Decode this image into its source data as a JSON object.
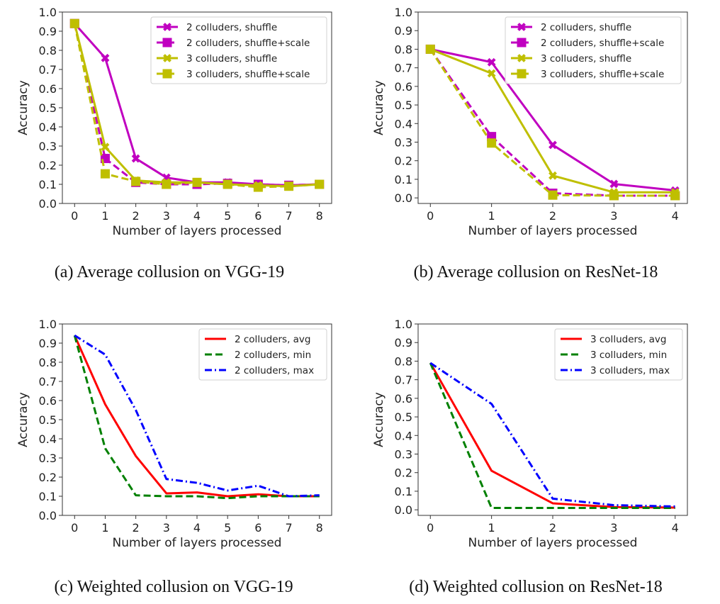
{
  "chart_data": [
    {
      "id": "a",
      "type": "line",
      "caption": "(a) Average collusion on VGG-19",
      "xlabel": "Number of layers processed",
      "ylabel": "Accuracy",
      "x": [
        0,
        1,
        2,
        3,
        4,
        5,
        6,
        7,
        8
      ],
      "xticks": [
        "0",
        "1",
        "2",
        "3",
        "4",
        "5",
        "6",
        "7",
        "8"
      ],
      "yticks": [
        "0.0",
        "0.1",
        "0.2",
        "0.3",
        "0.4",
        "0.5",
        "0.6",
        "0.7",
        "0.8",
        "0.9",
        "1.0"
      ],
      "xlim": [
        -0.4,
        8.4
      ],
      "ylim": [
        0.0,
        1.0
      ],
      "grid": false,
      "legend_position": "top-right",
      "series": [
        {
          "name": "2 colluders, shuffle",
          "color": "#c000c0",
          "style": "solid",
          "marker": "x-filled",
          "values": [
            0.94,
            0.76,
            0.235,
            0.135,
            0.11,
            0.11,
            0.1,
            0.095,
            0.1
          ]
        },
        {
          "name": "2 colluders, shuffle+scale",
          "color": "#c000c0",
          "style": "dashed",
          "marker": "square",
          "values": [
            0.94,
            0.235,
            0.11,
            0.1,
            0.1,
            0.105,
            0.1,
            0.095,
            0.1
          ]
        },
        {
          "name": "3 colluders, shuffle",
          "color": "#bfbf00",
          "style": "solid",
          "marker": "x-filled",
          "values": [
            0.94,
            0.295,
            0.12,
            0.11,
            0.11,
            0.1,
            0.095,
            0.09,
            0.1
          ]
        },
        {
          "name": "3 colluders, shuffle+scale",
          "color": "#bfbf00",
          "style": "dashed",
          "marker": "square",
          "values": [
            0.94,
            0.155,
            0.115,
            0.1,
            0.11,
            0.1,
            0.085,
            0.09,
            0.1
          ]
        }
      ]
    },
    {
      "id": "b",
      "type": "line",
      "caption": "(b) Average collusion on ResNet-18",
      "xlabel": "Number of layers processed",
      "ylabel": "Accuracy",
      "x": [
        0,
        1,
        2,
        3,
        4
      ],
      "xticks": [
        "0",
        "1",
        "2",
        "3",
        "4"
      ],
      "yticks": [
        "0.0",
        "0.1",
        "0.2",
        "0.3",
        "0.4",
        "0.5",
        "0.6",
        "0.7",
        "0.8",
        "0.9",
        "1.0"
      ],
      "xlim": [
        -0.2,
        4.2
      ],
      "ylim": [
        -0.03,
        1.0
      ],
      "grid": false,
      "legend_position": "top-right",
      "series": [
        {
          "name": "2 colluders, shuffle",
          "color": "#c000c0",
          "style": "solid",
          "marker": "x-filled",
          "values": [
            0.8,
            0.73,
            0.285,
            0.075,
            0.04
          ]
        },
        {
          "name": "2 colluders, shuffle+scale",
          "color": "#c000c0",
          "style": "dashed",
          "marker": "square",
          "values": [
            0.8,
            0.33,
            0.025,
            0.012,
            0.012
          ]
        },
        {
          "name": "3 colluders, shuffle",
          "color": "#bfbf00",
          "style": "solid",
          "marker": "x-filled",
          "values": [
            0.8,
            0.67,
            0.12,
            0.03,
            0.03
          ]
        },
        {
          "name": "3 colluders, shuffle+scale",
          "color": "#bfbf00",
          "style": "dashed",
          "marker": "square",
          "values": [
            0.8,
            0.295,
            0.015,
            0.012,
            0.012
          ]
        }
      ]
    },
    {
      "id": "c",
      "type": "line",
      "caption": "(c) Weighted collusion on VGG-19",
      "xlabel": "Number of layers processed",
      "ylabel": "Accuracy",
      "x": [
        0,
        1,
        2,
        3,
        4,
        5,
        6,
        7,
        8
      ],
      "xticks": [
        "0",
        "1",
        "2",
        "3",
        "4",
        "5",
        "6",
        "7",
        "8"
      ],
      "yticks": [
        "0.0",
        "0.1",
        "0.2",
        "0.3",
        "0.4",
        "0.5",
        "0.6",
        "0.7",
        "0.8",
        "0.9",
        "1.0"
      ],
      "xlim": [
        -0.4,
        8.4
      ],
      "ylim": [
        0.0,
        1.0
      ],
      "grid": false,
      "legend_position": "top-right",
      "series": [
        {
          "name": "2 colluders, avg",
          "color": "#ff0000",
          "style": "solid",
          "marker": "none",
          "values": [
            0.94,
            0.58,
            0.31,
            0.115,
            0.12,
            0.1,
            0.11,
            0.1,
            0.1
          ]
        },
        {
          "name": "2 colluders, min",
          "color": "#008000",
          "style": "dashed",
          "marker": "none",
          "values": [
            0.94,
            0.35,
            0.105,
            0.1,
            0.1,
            0.09,
            0.1,
            0.1,
            0.1
          ]
        },
        {
          "name": "2 colluders, max",
          "color": "#0000ff",
          "style": "dashdot",
          "marker": "none",
          "values": [
            0.94,
            0.84,
            0.55,
            0.19,
            0.17,
            0.13,
            0.155,
            0.1,
            0.105
          ]
        }
      ]
    },
    {
      "id": "d",
      "type": "line",
      "caption": "(d) Weighted collusion on ResNet-18",
      "xlabel": "Number of layers processed",
      "ylabel": "Accuracy",
      "x": [
        0,
        1,
        2,
        3,
        4
      ],
      "xticks": [
        "0",
        "1",
        "2",
        "3",
        "4"
      ],
      "yticks": [
        "0.0",
        "0.1",
        "0.2",
        "0.3",
        "0.4",
        "0.5",
        "0.6",
        "0.7",
        "0.8",
        "0.9",
        "1.0"
      ],
      "xlim": [
        -0.2,
        4.2
      ],
      "ylim": [
        -0.03,
        1.0
      ],
      "grid": false,
      "legend_position": "top-right",
      "series": [
        {
          "name": "3 colluders, avg",
          "color": "#ff0000",
          "style": "solid",
          "marker": "none",
          "values": [
            0.79,
            0.21,
            0.035,
            0.015,
            0.012
          ]
        },
        {
          "name": "3 colluders, min",
          "color": "#008000",
          "style": "dashed",
          "marker": "none",
          "values": [
            0.79,
            0.01,
            0.01,
            0.01,
            0.01
          ]
        },
        {
          "name": "3 colluders, max",
          "color": "#0000ff",
          "style": "dashdot",
          "marker": "none",
          "values": [
            0.79,
            0.57,
            0.06,
            0.025,
            0.018
          ]
        }
      ]
    }
  ]
}
